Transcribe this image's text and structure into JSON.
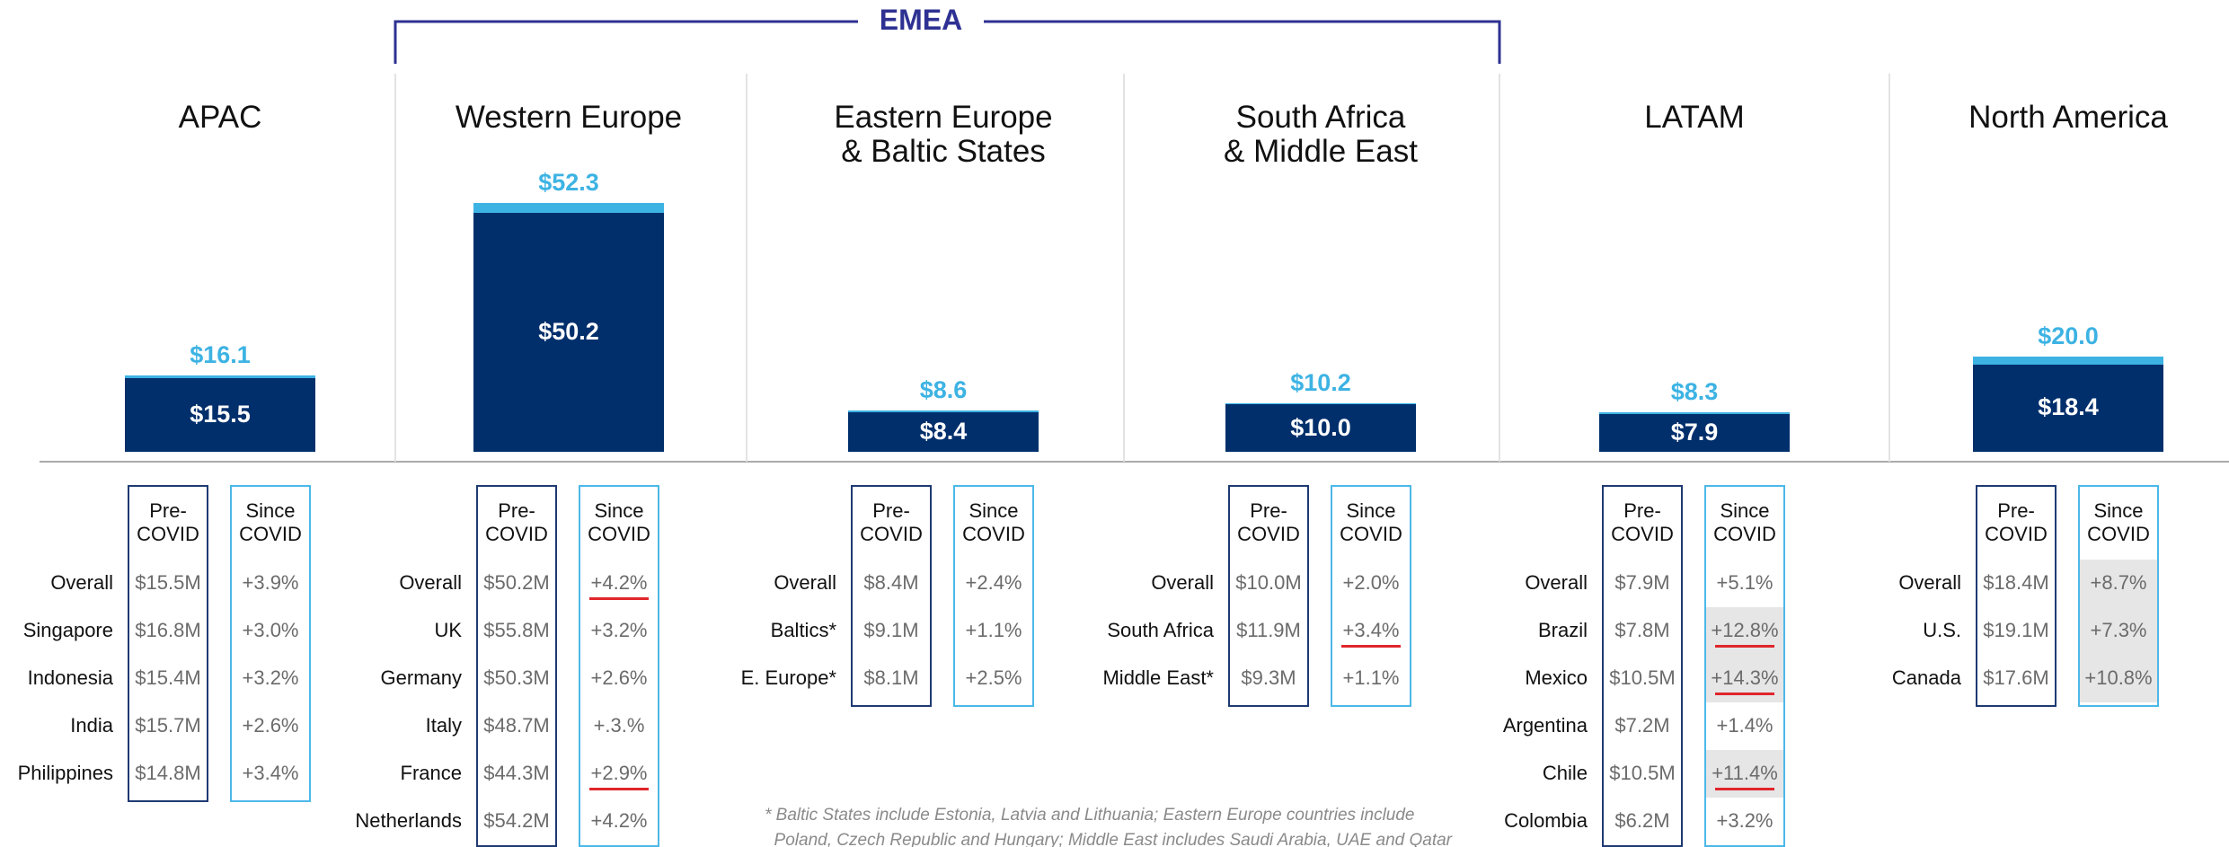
{
  "header": {
    "group_label": "EMEA"
  },
  "chart_data": {
    "type": "bar",
    "categories": [
      "APAC",
      "Western Europe",
      "Eastern Europe\n& Baltic States",
      "South Africa\n& Middle East",
      "LATAM",
      "North America"
    ],
    "series": [
      {
        "color": "#3db3e3",
        "values": [
          16.1,
          52.3,
          8.6,
          10.2,
          8.3,
          20.0
        ],
        "value_labels": [
          "$16.1",
          "$52.3",
          "$8.6",
          "$10.2",
          "$8.3",
          "$20.0"
        ]
      },
      {
        "color": "#002f6c",
        "values": [
          15.5,
          50.2,
          8.4,
          10.0,
          7.9,
          18.4
        ],
        "value_labels": [
          "$15.5",
          "$50.2",
          "$8.4",
          "$10.0",
          "$7.9",
          "$18.4"
        ]
      }
    ],
    "ylim": [
      0,
      55
    ]
  },
  "table_headers": [
    "Pre-\nCOVID",
    "Since\nCOVID"
  ],
  "tables": [
    {
      "rows": [
        [
          "Overall",
          "$15.5M",
          "+3.9%"
        ],
        [
          "Singapore",
          "$16.8M",
          "+3.0%"
        ],
        [
          "Indonesia",
          "$15.4M",
          "+3.2%"
        ],
        [
          "India",
          "$15.7M",
          "+2.6%"
        ],
        [
          "Philippines",
          "$14.8M",
          "+3.4%"
        ]
      ],
      "highlight": [],
      "underline": []
    },
    {
      "rows": [
        [
          "Overall",
          "$50.2M",
          "+4.2%"
        ],
        [
          "UK",
          "$55.8M",
          "+3.2%"
        ],
        [
          "Germany",
          "$50.3M",
          "+2.6%"
        ],
        [
          "Italy",
          "$48.7M",
          "+.3.%"
        ],
        [
          "France",
          "$44.3M",
          "+2.9%"
        ],
        [
          "Netherlands",
          "$54.2M",
          "+4.2%"
        ]
      ],
      "highlight": [],
      "underline": [
        0,
        4
      ]
    },
    {
      "rows": [
        [
          "Overall",
          "$8.4M",
          "+2.4%"
        ],
        [
          "Baltics*",
          "$9.1M",
          "+1.1%"
        ],
        [
          "E. Europe*",
          "$8.1M",
          "+2.5%"
        ]
      ],
      "highlight": [],
      "underline": []
    },
    {
      "rows": [
        [
          "Overall",
          "$10.0M",
          "+2.0%"
        ],
        [
          "South Africa",
          "$11.9M",
          "+3.4%"
        ],
        [
          "Middle East*",
          "$9.3M",
          "+1.1%"
        ]
      ],
      "highlight": [],
      "underline": [
        1
      ]
    },
    {
      "rows": [
        [
          "Overall",
          "$7.9M",
          "+5.1%"
        ],
        [
          "Brazil",
          "$7.8M",
          "+12.8%"
        ],
        [
          "Mexico",
          "$10.5M",
          "+14.3%"
        ],
        [
          "Argentina",
          "$7.2M",
          "+1.4%"
        ],
        [
          "Chile",
          "$10.5M",
          "+11.4%"
        ],
        [
          "Colombia",
          "$6.2M",
          "+3.2%"
        ]
      ],
      "highlight": [
        1,
        2,
        4
      ],
      "underline": [
        1,
        2,
        4
      ]
    },
    {
      "rows": [
        [
          "Overall",
          "$18.4M",
          "+8.7%"
        ],
        [
          "U.S.",
          "$19.1M",
          "+7.3%"
        ],
        [
          "Canada",
          "$17.6M",
          "+10.8%"
        ]
      ],
      "highlight": [
        0,
        1,
        2
      ],
      "underline": []
    }
  ],
  "footnote": "* Baltic States include Estonia, Latvia and Lithuania; Eastern Europe countries include\n  Poland, Czech Republic and Hungary; Middle East includes Saudi Arabia, UAE and Qatar"
}
